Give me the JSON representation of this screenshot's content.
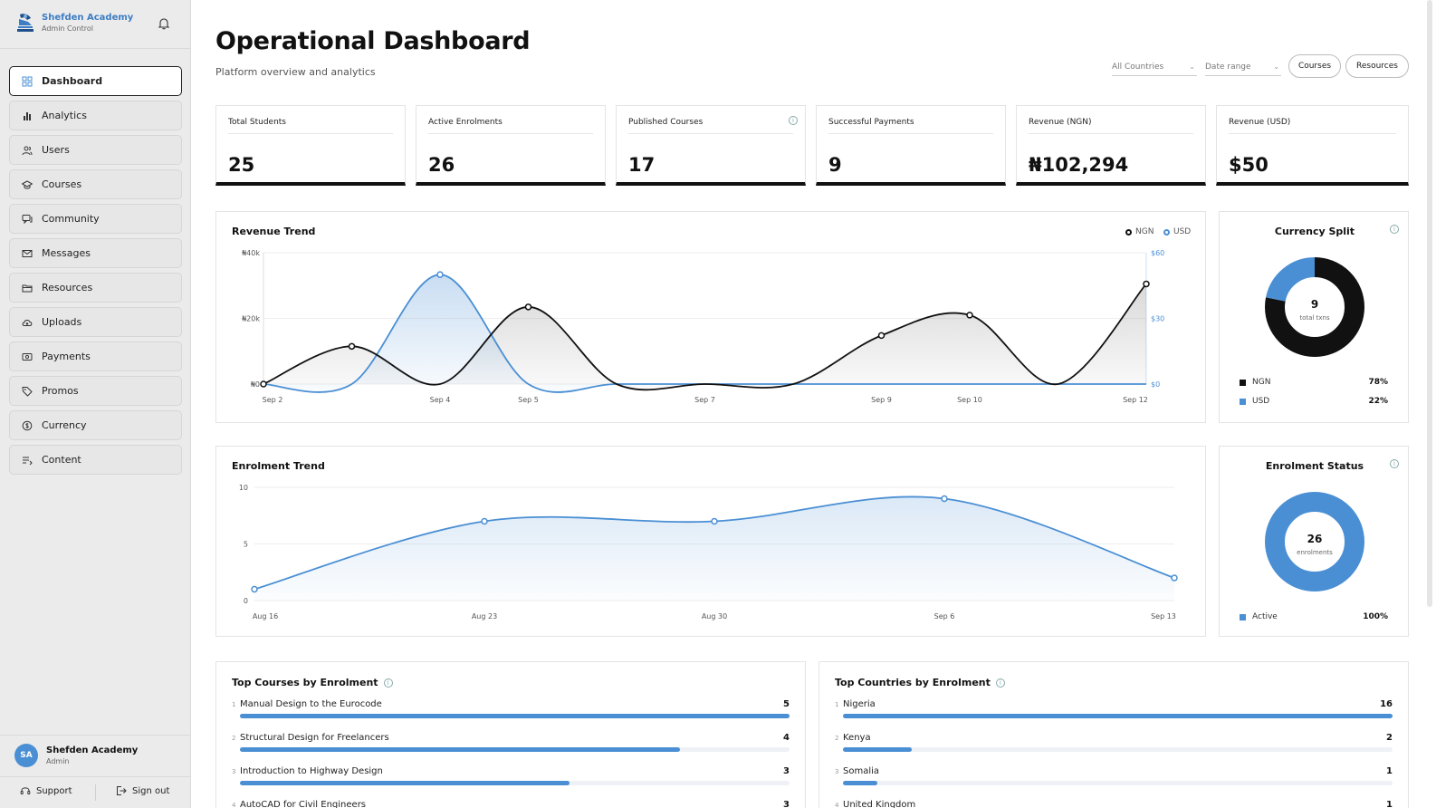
{
  "app": {
    "name": "Shefden Academy",
    "subtitle": "Admin Control"
  },
  "sidebar": {
    "items": [
      {
        "label": "Dashboard",
        "icon": "grid-icon",
        "active": true
      },
      {
        "label": "Analytics",
        "icon": "bar-chart-icon"
      },
      {
        "label": "Users",
        "icon": "users-icon"
      },
      {
        "label": "Courses",
        "icon": "graduation-cap-icon"
      },
      {
        "label": "Community",
        "icon": "chat-icon"
      },
      {
        "label": "Messages",
        "icon": "mail-icon"
      },
      {
        "label": "Resources",
        "icon": "folder-icon"
      },
      {
        "label": "Uploads",
        "icon": "cloud-upload-icon"
      },
      {
        "label": "Payments",
        "icon": "cash-icon"
      },
      {
        "label": "Promos",
        "icon": "tag-icon"
      },
      {
        "label": "Currency",
        "icon": "currency-exchange-icon"
      },
      {
        "label": "Content",
        "icon": "content-list-icon"
      }
    ]
  },
  "profile": {
    "initials": "SA",
    "name": "Shefden Academy",
    "role": "Admin"
  },
  "footer": {
    "support": "Support",
    "signout": "Sign out"
  },
  "header": {
    "title": "Operational Dashboard",
    "subtitle": "Platform overview and analytics"
  },
  "filters": {
    "country": "All Countries",
    "date": "Date range",
    "courses_btn": "Courses",
    "resources_btn": "Resources"
  },
  "kpis": [
    {
      "label": "Total Students",
      "value": "25"
    },
    {
      "label": "Active Enrolments",
      "value": "26"
    },
    {
      "label": "Published Courses",
      "value": "17"
    },
    {
      "label": "Successful Payments",
      "value": "9"
    },
    {
      "label": "Revenue (NGN)",
      "value": "₦102,294"
    },
    {
      "label": "Revenue (USD)",
      "value": "$50"
    }
  ],
  "chart_data": [
    {
      "type": "line",
      "title": "Revenue Trend",
      "x": [
        "Sep 2",
        "Sep 3",
        "Sep 4",
        "Sep 5",
        "Sep 6",
        "Sep 7",
        "Sep 8",
        "Sep 9",
        "Sep 10",
        "Sep 11",
        "Sep 12"
      ],
      "x_tick_labels": [
        "Sep 2",
        "Sep 4",
        "Sep 5",
        "Sep 7",
        "Sep 9",
        "Sep 10",
        "Sep 12"
      ],
      "series": [
        {
          "name": "NGN",
          "axis": "left",
          "color": "#111111",
          "values": [
            0,
            11500,
            0,
            23500,
            0,
            0,
            0,
            14800,
            21000,
            0,
            30500
          ]
        },
        {
          "name": "USD",
          "axis": "right",
          "color": "#4a8fd4",
          "values": [
            0,
            0,
            50,
            0,
            0,
            0,
            0,
            0,
            0,
            0,
            0
          ]
        }
      ],
      "y_left": {
        "ticks": [
          "₦0",
          "₦20k",
          "₦40k"
        ],
        "range": [
          0,
          40000
        ]
      },
      "y_right": {
        "ticks": [
          "$0",
          "$30",
          "$60"
        ],
        "range": [
          0,
          60
        ]
      },
      "legend": "top-right"
    },
    {
      "type": "pie",
      "title": "Currency Split",
      "center_value": "9",
      "center_label": "total txns",
      "slices": [
        {
          "name": "NGN",
          "value": 78,
          "label": "78%",
          "color": "#111111"
        },
        {
          "name": "USD",
          "value": 22,
          "label": "22%",
          "color": "#4a8fd4"
        }
      ]
    },
    {
      "type": "area",
      "title": "Enrolment Trend",
      "x": [
        "Aug 16",
        "Aug 23",
        "Aug 30",
        "Sep 6",
        "Sep 13"
      ],
      "values": [
        1,
        7,
        7,
        9,
        2
      ],
      "y_ticks": [
        "0",
        "5",
        "10"
      ],
      "ylim": [
        0,
        10
      ],
      "color": "#4a8fd4"
    },
    {
      "type": "pie",
      "title": "Enrolment Status",
      "center_value": "26",
      "center_label": "enrolments",
      "slices": [
        {
          "name": "Active",
          "value": 100,
          "label": "100%",
          "color": "#4a8fd4"
        }
      ]
    }
  ],
  "top_courses": {
    "title": "Top Courses by Enrolment",
    "max": 5,
    "items": [
      {
        "rank": "1",
        "name": "Manual Design to the Eurocode",
        "value": 5
      },
      {
        "rank": "2",
        "name": "Structural Design for Freelancers",
        "value": 4
      },
      {
        "rank": "3",
        "name": "Introduction to Highway Design",
        "value": 3
      },
      {
        "rank": "4",
        "name": "AutoCAD for Civil Engineers",
        "value": 3
      }
    ]
  },
  "top_countries": {
    "title": "Top Countries by Enrolment",
    "max": 16,
    "items": [
      {
        "rank": "1",
        "name": "Nigeria",
        "value": 16
      },
      {
        "rank": "2",
        "name": "Kenya",
        "value": 2
      },
      {
        "rank": "3",
        "name": "Somalia",
        "value": 1
      },
      {
        "rank": "4",
        "name": "United Kingdom",
        "value": 1
      }
    ]
  }
}
